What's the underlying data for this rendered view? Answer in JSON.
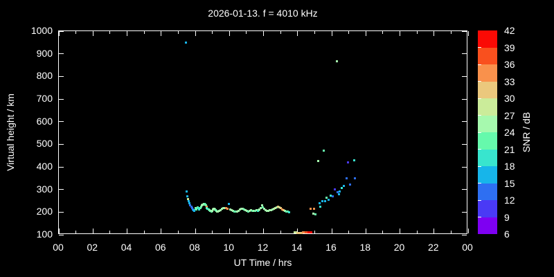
{
  "title": "2026-01-13. f = 4010 kHz",
  "axes": {
    "xlabel": "UT Time / hrs",
    "ylabel": "Virtual height / km",
    "x_range": [
      0,
      24
    ],
    "y_range": [
      100,
      1000
    ],
    "x_ticks": {
      "values": [
        0,
        2,
        4,
        6,
        8,
        10,
        12,
        14,
        16,
        18,
        20,
        22,
        24
      ],
      "labels": [
        "00",
        "02",
        "04",
        "06",
        "08",
        "10",
        "12",
        "14",
        "16",
        "18",
        "20",
        "22",
        "00"
      ]
    },
    "x_minor_ticks": [
      1,
      3,
      5,
      7,
      9,
      11,
      13,
      15,
      17,
      19,
      21,
      23
    ],
    "y_ticks": {
      "values": [
        100,
        200,
        300,
        400,
        500,
        600,
        700,
        800,
        900,
        1000
      ],
      "labels": [
        "100",
        "200",
        "300",
        "400",
        "500",
        "600",
        "700",
        "800",
        "900",
        "1000"
      ]
    }
  },
  "colorbar": {
    "label": "SNR / dB",
    "levels": [
      6,
      9,
      12,
      15,
      18,
      21,
      24,
      27,
      30,
      33,
      36,
      39,
      42
    ],
    "colors": [
      "#7E00F2",
      "#4A3AF5",
      "#2E6FF2",
      "#17B5EA",
      "#38E5CE",
      "#66F9AC",
      "#A6F9AE",
      "#CBEC9A",
      "#EBC87D",
      "#F9914C",
      "#F9501E",
      "#FA0A05"
    ]
  },
  "chart_data": {
    "type": "scatter",
    "title": "2026-01-13. f = 4010 kHz",
    "xlabel": "UT Time / hrs",
    "ylabel": "Virtual height / km",
    "zlabel": "SNR / dB",
    "xlim": [
      0,
      24
    ],
    "ylim": [
      100,
      1000
    ],
    "zlim": [
      6,
      42
    ],
    "grid": false,
    "points_format": [
      "ut_hour",
      "virtual_height_km",
      "snr_db"
    ],
    "points": [
      [
        7.47,
        948,
        16
      ],
      [
        7.51,
        290,
        16
      ],
      [
        7.55,
        271,
        17
      ],
      [
        7.59,
        259,
        28
      ],
      [
        7.63,
        247,
        16
      ],
      [
        7.67,
        238,
        16
      ],
      [
        7.71,
        230,
        14
      ],
      [
        7.76,
        224,
        14
      ],
      [
        7.8,
        219,
        13
      ],
      [
        7.84,
        213,
        12
      ],
      [
        7.88,
        209,
        15
      ],
      [
        7.92,
        207,
        17
      ],
      [
        8.0,
        219,
        25
      ],
      [
        8.04,
        214,
        22
      ],
      [
        8.08,
        212,
        22
      ],
      [
        8.12,
        217,
        23
      ],
      [
        8.16,
        222,
        22
      ],
      [
        8.2,
        217,
        20
      ],
      [
        8.24,
        213,
        20
      ],
      [
        8.29,
        219,
        21
      ],
      [
        8.33,
        225,
        21
      ],
      [
        8.37,
        229,
        24
      ],
      [
        8.41,
        232,
        26
      ],
      [
        8.45,
        234,
        26
      ],
      [
        8.49,
        236,
        26
      ],
      [
        8.53,
        236,
        23
      ],
      [
        8.57,
        234,
        21
      ],
      [
        8.61,
        229,
        22
      ],
      [
        8.65,
        224,
        34
      ],
      [
        8.69,
        218,
        21
      ],
      [
        8.73,
        216,
        20
      ],
      [
        8.78,
        212,
        22
      ],
      [
        8.82,
        210,
        21
      ],
      [
        8.86,
        207,
        23
      ],
      [
        8.9,
        205,
        24
      ],
      [
        8.94,
        204,
        23
      ],
      [
        8.98,
        207,
        25
      ],
      [
        9.02,
        211,
        24
      ],
      [
        9.06,
        214,
        25
      ],
      [
        9.1,
        216,
        26
      ],
      [
        9.14,
        213,
        25
      ],
      [
        9.18,
        210,
        23
      ],
      [
        9.22,
        207,
        22
      ],
      [
        9.27,
        204,
        24
      ],
      [
        9.31,
        202,
        25
      ],
      [
        9.39,
        205,
        24
      ],
      [
        9.47,
        210,
        26
      ],
      [
        9.55,
        214,
        25
      ],
      [
        9.63,
        217,
        26
      ],
      [
        9.71,
        219,
        25
      ],
      [
        9.8,
        218,
        33
      ],
      [
        9.88,
        216,
        34
      ],
      [
        9.96,
        235,
        16
      ],
      [
        10.04,
        213,
        24
      ],
      [
        10.12,
        210,
        25
      ],
      [
        10.2,
        206,
        24
      ],
      [
        10.29,
        203,
        23
      ],
      [
        10.37,
        202,
        22
      ],
      [
        10.45,
        204,
        25
      ],
      [
        10.53,
        207,
        26
      ],
      [
        10.61,
        211,
        25
      ],
      [
        10.69,
        214,
        26
      ],
      [
        10.78,
        216,
        24
      ],
      [
        10.86,
        213,
        23
      ],
      [
        10.94,
        209,
        25
      ],
      [
        11.02,
        206,
        24
      ],
      [
        11.1,
        204,
        22
      ],
      [
        11.18,
        206,
        24
      ],
      [
        11.27,
        208,
        25
      ],
      [
        11.35,
        207,
        23
      ],
      [
        11.43,
        206,
        25
      ],
      [
        11.51,
        207,
        21
      ],
      [
        11.59,
        210,
        24
      ],
      [
        11.67,
        207,
        19
      ],
      [
        11.71,
        210,
        22
      ],
      [
        11.76,
        213,
        25
      ],
      [
        11.84,
        219,
        24
      ],
      [
        11.92,
        229,
        25
      ],
      [
        11.96,
        222,
        23
      ],
      [
        12.04,
        214,
        24
      ],
      [
        12.12,
        210,
        25
      ],
      [
        12.2,
        207,
        24
      ],
      [
        12.29,
        206,
        26
      ],
      [
        12.37,
        208,
        25
      ],
      [
        12.45,
        210,
        26
      ],
      [
        12.53,
        212,
        25
      ],
      [
        12.61,
        214,
        26
      ],
      [
        12.69,
        217,
        27
      ],
      [
        12.78,
        220,
        26
      ],
      [
        12.86,
        225,
        30
      ],
      [
        12.94,
        222,
        29
      ],
      [
        13.02,
        219,
        31
      ],
      [
        13.1,
        213,
        34
      ],
      [
        13.18,
        210,
        31
      ],
      [
        13.27,
        207,
        26
      ],
      [
        13.35,
        204,
        22
      ],
      [
        13.43,
        202,
        21
      ],
      [
        13.51,
        200,
        20
      ],
      [
        13.84,
        112,
        27
      ],
      [
        13.92,
        110,
        29
      ],
      [
        14.0,
        109,
        31
      ],
      [
        14.08,
        108,
        31
      ],
      [
        14.16,
        108,
        30
      ],
      [
        14.24,
        109,
        32
      ],
      [
        14.33,
        110,
        34
      ],
      [
        14.41,
        111,
        35
      ],
      [
        14.49,
        112,
        37
      ],
      [
        14.57,
        112,
        38
      ],
      [
        14.65,
        111,
        40
      ],
      [
        14.73,
        112,
        41
      ],
      [
        14.82,
        111,
        41
      ],
      [
        14.78,
        216,
        35
      ],
      [
        14.94,
        192,
        24
      ],
      [
        14.98,
        216,
        34
      ],
      [
        15.06,
        189,
        23
      ],
      [
        15.22,
        427,
        26
      ],
      [
        15.27,
        238,
        17
      ],
      [
        15.35,
        225,
        18
      ],
      [
        15.47,
        250,
        16
      ],
      [
        15.55,
        473,
        21
      ],
      [
        15.63,
        247,
        17
      ],
      [
        15.71,
        265,
        22
      ],
      [
        15.8,
        256,
        17
      ],
      [
        15.92,
        274,
        18
      ],
      [
        16.08,
        271,
        13
      ],
      [
        16.2,
        302,
        10
      ],
      [
        16.29,
        866,
        25
      ],
      [
        16.33,
        287,
        13
      ],
      [
        16.41,
        278,
        16
      ],
      [
        16.45,
        290,
        16
      ],
      [
        16.57,
        308,
        19
      ],
      [
        16.73,
        317,
        16
      ],
      [
        16.86,
        348,
        13
      ],
      [
        16.94,
        421,
        10
      ],
      [
        17.06,
        323,
        12
      ],
      [
        17.31,
        430,
        19
      ],
      [
        17.35,
        351,
        13
      ]
    ]
  }
}
